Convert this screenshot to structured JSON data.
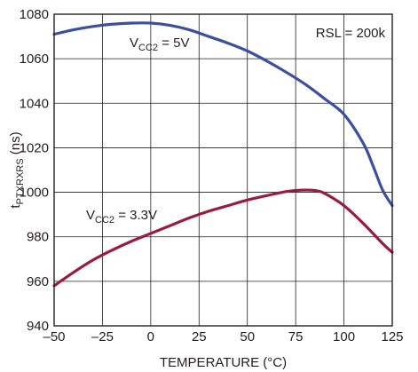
{
  "chart_data": {
    "type": "line",
    "xlabel": "TEMPERATURE (°C)",
    "ylabel": {
      "main": "t",
      "subscript": "PTXRXRS",
      "suffix": " (ns)"
    },
    "xlim": [
      -50,
      125
    ],
    "ylim": [
      940,
      1080
    ],
    "x_ticks": [
      -50,
      -25,
      0,
      25,
      50,
      75,
      100,
      125
    ],
    "x_tick_labels": [
      "–50",
      "–25",
      "0",
      "25",
      "50",
      "75",
      "100",
      "125"
    ],
    "y_ticks": [
      940,
      960,
      980,
      1000,
      1020,
      1040,
      1060,
      1080
    ],
    "y_tick_labels": [
      "940",
      "960",
      "980",
      "1000",
      "1020",
      "1040",
      "1060",
      "1080"
    ],
    "grid": true,
    "series": [
      {
        "label": {
          "main": "V",
          "subscript": "CC2",
          "suffix": " = 5V"
        },
        "color": "#3a4fa0",
        "x": [
          -50,
          -40,
          -30,
          -20,
          -10,
          0,
          10,
          20,
          30,
          40,
          50,
          60,
          70,
          80,
          90,
          100,
          110,
          115,
          120,
          125
        ],
        "y": [
          1071,
          1073,
          1074.5,
          1075.5,
          1076,
          1076,
          1075,
          1073,
          1070,
          1067,
          1063.5,
          1059,
          1054,
          1048.5,
          1042,
          1035,
          1022,
          1012,
          1001,
          994
        ]
      },
      {
        "label": {
          "main": "V",
          "subscript": "CC2",
          "suffix": " = 3.3V"
        },
        "color": "#9b1b3f",
        "x": [
          -50,
          -40,
          -30,
          -20,
          -10,
          0,
          10,
          20,
          30,
          40,
          50,
          60,
          70,
          75,
          80,
          85,
          90,
          100,
          110,
          120,
          125
        ],
        "y": [
          958,
          964,
          969.5,
          974,
          978,
          981.5,
          985,
          988.5,
          991.5,
          994,
          996.5,
          998.5,
          1000.3,
          1000.8,
          1001,
          1000.8,
          999.5,
          994,
          986,
          977,
          973
        ]
      }
    ],
    "annotations": [
      {
        "text": "RSL = 200k"
      }
    ]
  }
}
